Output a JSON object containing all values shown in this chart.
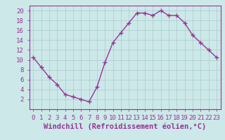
{
  "x": [
    0,
    1,
    2,
    3,
    4,
    5,
    6,
    7,
    8,
    9,
    10,
    11,
    12,
    13,
    14,
    15,
    16,
    17,
    18,
    19,
    20,
    21,
    22,
    23
  ],
  "y": [
    10.5,
    8.5,
    6.5,
    5.0,
    3.0,
    2.5,
    2.0,
    1.5,
    4.5,
    9.5,
    13.5,
    15.5,
    17.5,
    19.5,
    19.5,
    19.0,
    20.0,
    19.0,
    19.0,
    17.5,
    15.0,
    13.5,
    12.0,
    10.5
  ],
  "line_color": "#993399",
  "marker_color": "#993399",
  "bg_color": "#cce8e8",
  "grid_color": "#aacccc",
  "xlabel": "Windchill (Refroidissement éolien,°C)",
  "xlim": [
    -0.5,
    23.5
  ],
  "ylim": [
    0,
    21
  ],
  "yticks": [
    2,
    4,
    6,
    8,
    10,
    12,
    14,
    16,
    18,
    20
  ],
  "xticks": [
    0,
    1,
    2,
    3,
    4,
    5,
    6,
    7,
    8,
    9,
    10,
    11,
    12,
    13,
    14,
    15,
    16,
    17,
    18,
    19,
    20,
    21,
    22,
    23
  ],
  "xtick_labels": [
    "0",
    "1",
    "2",
    "3",
    "4",
    "5",
    "6",
    "7",
    "8",
    "9",
    "10",
    "11",
    "12",
    "13",
    "14",
    "15",
    "16",
    "17",
    "18",
    "19",
    "20",
    "21",
    "22",
    "23"
  ],
  "axis_color": "#993399",
  "tick_color": "#993399",
  "label_fontsize": 7.5,
  "tick_fontsize": 6.5,
  "marker_size": 2.5,
  "line_width": 1.0
}
